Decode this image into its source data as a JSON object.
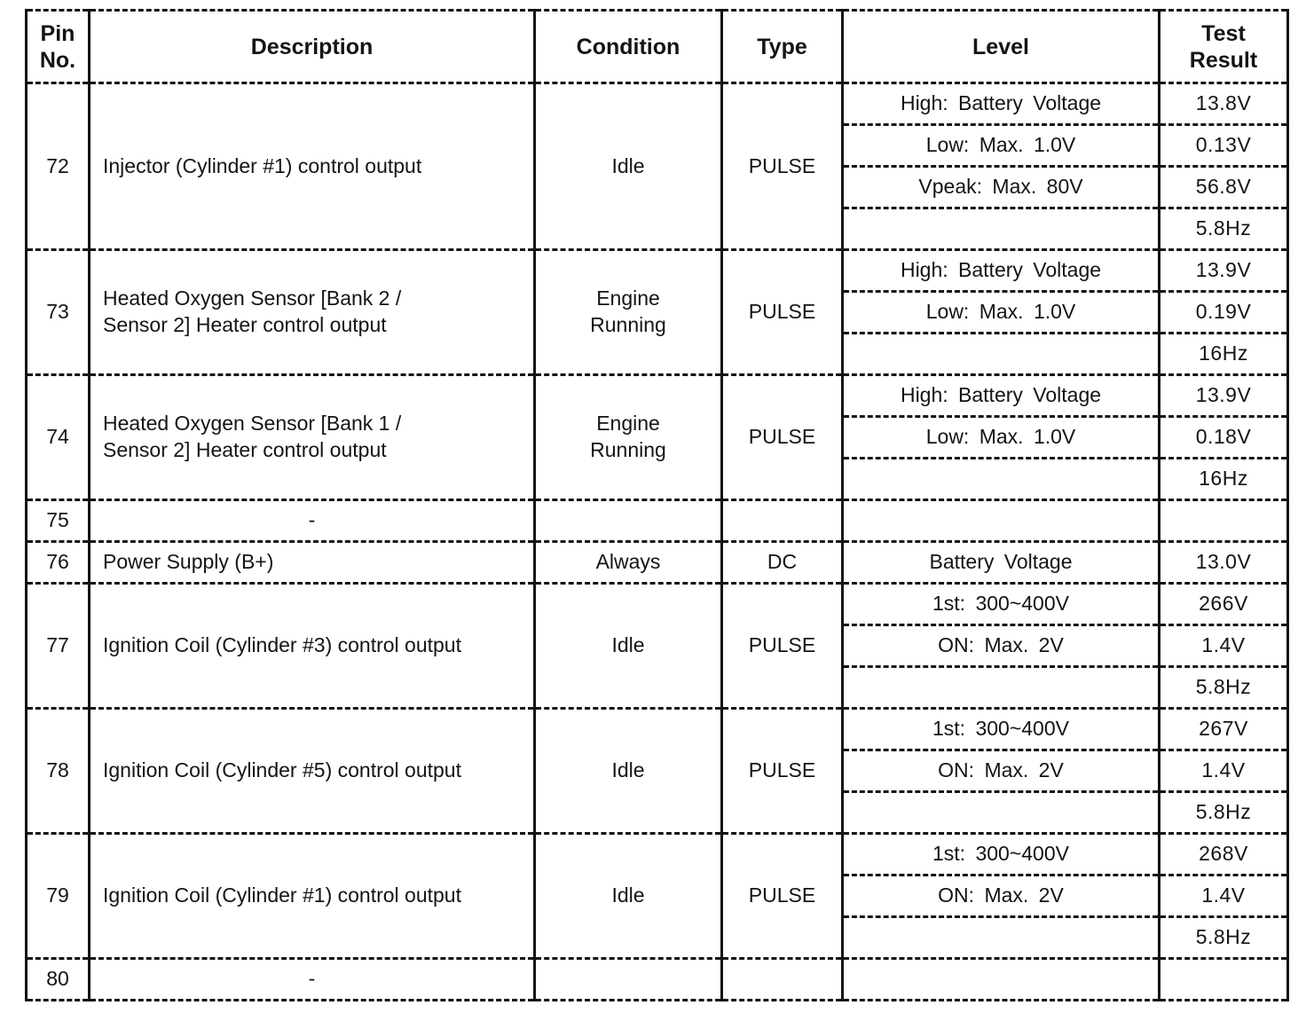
{
  "colors": {
    "ink": "#141414",
    "paper": "#ffffff"
  },
  "table": {
    "header": [
      {
        "key": "pin",
        "label": "Pin\nNo."
      },
      {
        "key": "description",
        "label": "Description"
      },
      {
        "key": "condition",
        "label": "Condition"
      },
      {
        "key": "type",
        "label": "Type"
      },
      {
        "key": "level",
        "label": "Level"
      },
      {
        "key": "result",
        "label": "Test\nResult"
      }
    ],
    "rows": [
      {
        "pin": "72",
        "description": "Injector (Cylinder #1) control output",
        "condition": "Idle",
        "type": "PULSE",
        "levels": [
          {
            "level": "High: Battery Voltage",
            "result": "13.8V"
          },
          {
            "level": "Low: Max. 1.0V",
            "result": "0.13V"
          },
          {
            "level": "Vpeak: Max. 80V",
            "result": "56.8V"
          },
          {
            "level": "",
            "result": "5.8Hz"
          }
        ]
      },
      {
        "pin": "73",
        "description": "Heated Oxygen Sensor [Bank 2 /\nSensor 2] Heater control output",
        "condition": "Engine\nRunning",
        "type": "PULSE",
        "levels": [
          {
            "level": "High: Battery Voltage",
            "result": "13.9V"
          },
          {
            "level": "Low: Max. 1.0V",
            "result": "0.19V"
          },
          {
            "level": "",
            "result": "16Hz"
          }
        ]
      },
      {
        "pin": "74",
        "description": "Heated Oxygen Sensor [Bank 1 /\nSensor 2] Heater control output",
        "condition": "Engine\nRunning",
        "type": "PULSE",
        "levels": [
          {
            "level": "High: Battery Voltage",
            "result": "13.9V"
          },
          {
            "level": "Low: Max. 1.0V",
            "result": "0.18V"
          },
          {
            "level": "",
            "result": "16Hz"
          }
        ]
      },
      {
        "pin": "75",
        "description": "-",
        "condition": "",
        "type": "",
        "levels": [
          {
            "level": "",
            "result": ""
          }
        ]
      },
      {
        "pin": "76",
        "description": "Power Supply (B+)",
        "condition": "Always",
        "type": "DC",
        "levels": [
          {
            "level": "Battery Voltage",
            "result": "13.0V"
          }
        ]
      },
      {
        "pin": "77",
        "description": "Ignition Coil (Cylinder #3) control output",
        "condition": "Idle",
        "type": "PULSE",
        "levels": [
          {
            "level": "1st: 300~400V",
            "result": "266V"
          },
          {
            "level": "ON: Max. 2V",
            "result": "1.4V"
          },
          {
            "level": "",
            "result": "5.8Hz"
          }
        ]
      },
      {
        "pin": "78",
        "description": "Ignition Coil (Cylinder #5) control output",
        "condition": "Idle",
        "type": "PULSE",
        "levels": [
          {
            "level": "1st: 300~400V",
            "result": "267V"
          },
          {
            "level": "ON: Max. 2V",
            "result": "1.4V"
          },
          {
            "level": "",
            "result": "5.8Hz"
          }
        ]
      },
      {
        "pin": "79",
        "description": "Ignition Coil (Cylinder #1) control output",
        "condition": "Idle",
        "type": "PULSE",
        "levels": [
          {
            "level": "1st: 300~400V",
            "result": "268V"
          },
          {
            "level": "ON: Max. 2V",
            "result": "1.4V"
          },
          {
            "level": "",
            "result": "5.8Hz"
          }
        ]
      },
      {
        "pin": "80",
        "description": "-",
        "condition": "",
        "type": "",
        "levels": [
          {
            "level": "",
            "result": ""
          }
        ]
      }
    ]
  }
}
